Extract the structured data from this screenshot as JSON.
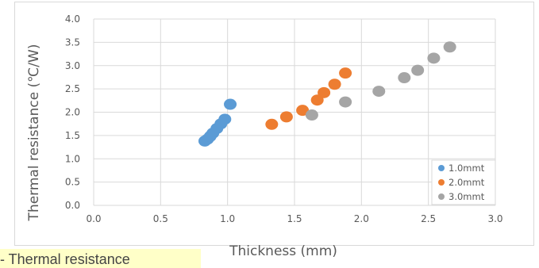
{
  "chart_data": {
    "type": "scatter",
    "xlabel": "Thickness (mm)",
    "ylabel": "Thermal resistance (℃/W)",
    "xlim": [
      0.0,
      3.0
    ],
    "ylim": [
      0.0,
      4.0
    ],
    "x_ticks": [
      "0.0",
      "0.5",
      "1.0",
      "1.5",
      "2.0",
      "2.5",
      "3.0"
    ],
    "y_ticks": [
      "0.0",
      "0.5",
      "1.0",
      "1.5",
      "2.0",
      "2.5",
      "3.0",
      "3.5",
      "4.0"
    ],
    "grid": true,
    "legend_position": "bottom-right",
    "series": [
      {
        "name": "1.0mmt",
        "color": "#5b9bd5",
        "points": [
          [
            0.83,
            1.38
          ],
          [
            0.85,
            1.42
          ],
          [
            0.87,
            1.48
          ],
          [
            0.89,
            1.55
          ],
          [
            0.92,
            1.65
          ],
          [
            0.95,
            1.75
          ],
          [
            0.98,
            1.85
          ],
          [
            1.02,
            2.17
          ]
        ]
      },
      {
        "name": "2.0mmt",
        "color": "#ed7d31",
        "points": [
          [
            1.33,
            1.74
          ],
          [
            1.44,
            1.9
          ],
          [
            1.56,
            2.04
          ],
          [
            1.67,
            2.26
          ],
          [
            1.72,
            2.42
          ],
          [
            1.8,
            2.6
          ],
          [
            1.88,
            2.84
          ]
        ]
      },
      {
        "name": "3.0mmt",
        "color": "#a5a5a5",
        "points": [
          [
            1.63,
            1.94
          ],
          [
            1.88,
            2.22
          ],
          [
            2.13,
            2.45
          ],
          [
            2.32,
            2.74
          ],
          [
            2.42,
            2.9
          ],
          [
            2.54,
            3.16
          ],
          [
            2.66,
            3.4
          ]
        ]
      }
    ]
  },
  "caption": {
    "text": "s -  Thermal resistance"
  }
}
